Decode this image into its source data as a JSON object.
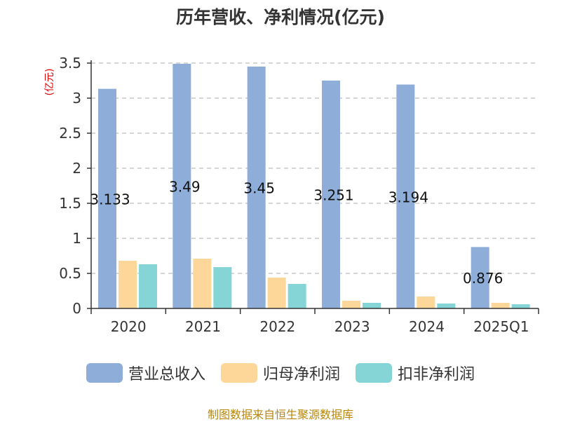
{
  "chart_data": {
    "type": "bar",
    "title": "历年营收、净利情况(亿元)",
    "ylabel": "(亿元)",
    "categories": [
      "2020",
      "2021",
      "2022",
      "2023",
      "2024",
      "2025Q1"
    ],
    "ylim": [
      0,
      3.5
    ],
    "yticks": [
      "0",
      "0.5",
      "1",
      "1.5",
      "2",
      "2.5",
      "3",
      "3.5"
    ],
    "grid": true,
    "legend_position": "bottom",
    "series": [
      {
        "name": "营业总收入",
        "color": "#8eadd9",
        "values": [
          3.133,
          3.49,
          3.45,
          3.251,
          3.194,
          0.876
        ],
        "labels": [
          "3.133",
          "3.49",
          "3.45",
          "3.251",
          "3.194",
          "0.876"
        ]
      },
      {
        "name": "归母净利润",
        "color": "#fdd79a",
        "values": [
          0.68,
          0.71,
          0.44,
          0.11,
          0.17,
          0.08
        ]
      },
      {
        "name": "扣非净利润",
        "color": "#86d5d6",
        "values": [
          0.63,
          0.59,
          0.35,
          0.08,
          0.07,
          0.06
        ]
      }
    ]
  },
  "source": "制图数据来自恒生聚源数据库"
}
